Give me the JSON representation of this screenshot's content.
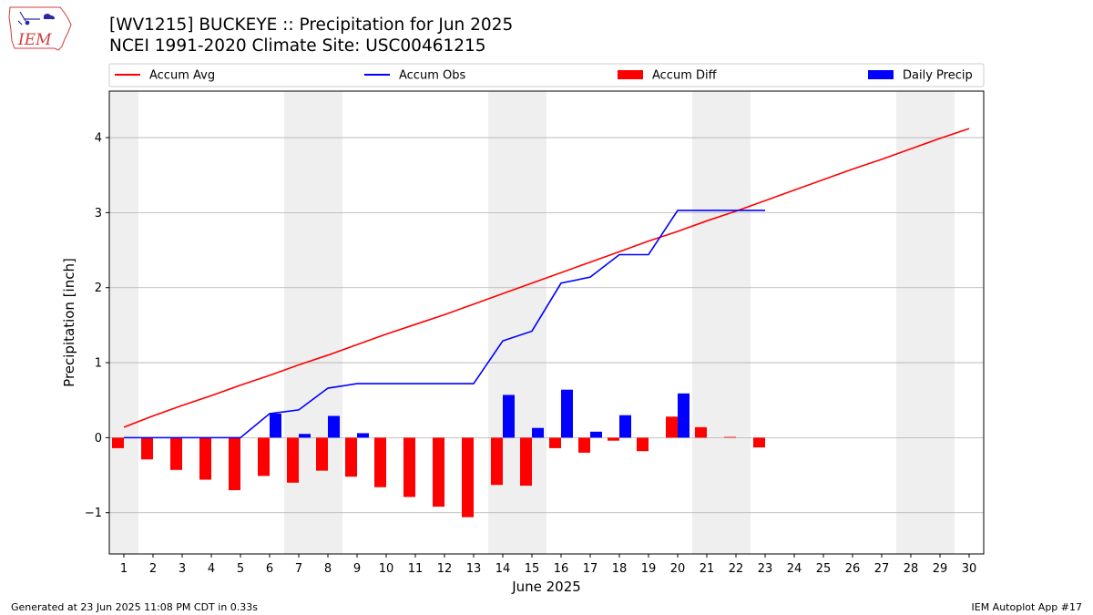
{
  "header": {
    "title_line1": "[WV1215] BUCKEYE :: Precipitation for Jun 2025",
    "title_line2": "NCEI 1991-2020 Climate Site: USC00461215"
  },
  "footer": {
    "generated": "Generated at 23 Jun 2025 11:08 PM CDT in 0.33s",
    "app": "IEM Autoplot App #17"
  },
  "logo": {
    "text": "IEM"
  },
  "chart_data": {
    "type": "bar",
    "xlabel": "June 2025",
    "ylabel": "Precipitation [inch]",
    "ylim": [
      -1.55,
      4.62
    ],
    "yticks": [
      -1,
      0,
      1,
      2,
      3,
      4
    ],
    "ytick_labels": [
      "−1",
      "0",
      "1",
      "2",
      "3",
      "4"
    ],
    "grid": "horizontal",
    "legend": "top",
    "days": [
      1,
      2,
      3,
      4,
      5,
      6,
      7,
      8,
      9,
      10,
      11,
      12,
      13,
      14,
      15,
      16,
      17,
      18,
      19,
      20,
      21,
      22,
      23,
      24,
      25,
      26,
      27,
      28,
      29,
      30
    ],
    "weekend_shading": [
      [
        1,
        1
      ],
      [
        7,
        8
      ],
      [
        14,
        15
      ],
      [
        21,
        22
      ],
      [
        28,
        29
      ]
    ],
    "series": [
      {
        "name": "Accum Avg",
        "kind": "line",
        "color": "#ff0000",
        "values": [
          0.14,
          0.29,
          0.43,
          0.56,
          0.7,
          0.83,
          0.97,
          1.1,
          1.24,
          1.38,
          1.51,
          1.64,
          1.78,
          1.92,
          2.06,
          2.2,
          2.34,
          2.48,
          2.62,
          2.75,
          2.89,
          3.02,
          3.16,
          3.3,
          3.44,
          3.58,
          3.71,
          3.85,
          3.99,
          4.12
        ]
      },
      {
        "name": "Accum Obs",
        "kind": "line",
        "color": "#0000ff",
        "values": [
          0.0,
          0.0,
          0.0,
          0.0,
          0.0,
          0.32,
          0.37,
          0.66,
          0.72,
          0.72,
          0.72,
          0.72,
          0.72,
          1.29,
          1.42,
          2.06,
          2.14,
          2.44,
          2.44,
          3.03,
          3.03,
          3.03,
          3.03
        ]
      },
      {
        "name": "Accum Diff",
        "kind": "bar",
        "color": "#ff0000",
        "values": [
          -0.14,
          -0.29,
          -0.43,
          -0.56,
          -0.7,
          -0.51,
          -0.6,
          -0.44,
          -0.52,
          -0.66,
          -0.79,
          -0.92,
          -1.06,
          -0.63,
          -0.64,
          -0.14,
          -0.2,
          -0.04,
          -0.18,
          0.28,
          0.14,
          0.01,
          -0.13
        ]
      },
      {
        "name": "Daily Precip",
        "kind": "bar",
        "color": "#0000ff",
        "values": [
          0.0,
          0.0,
          0.0,
          0.0,
          0.0,
          0.32,
          0.05,
          0.29,
          0.06,
          0.0,
          0.0,
          0.0,
          0.0,
          0.57,
          0.13,
          0.64,
          0.08,
          0.3,
          0.0,
          0.59,
          0.0,
          0.0,
          0.0
        ]
      }
    ]
  }
}
